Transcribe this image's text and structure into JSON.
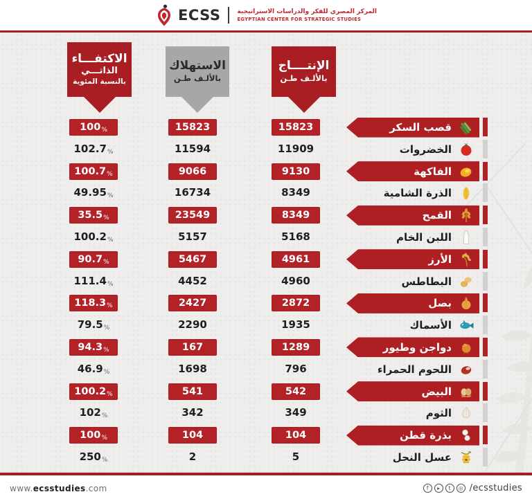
{
  "logo": {
    "short_name": "ECSS",
    "arabic_name": "المركز المصري للفكر والدراسات الاستراتيجية",
    "english_name": "EGYPTIAN CENTER FOR STRATEGIC STUDIES"
  },
  "columns": {
    "self_sufficiency": {
      "line1": "الاكتفـــاء",
      "line2": "الذاتـــي",
      "line3": "بالنسبة المئوية"
    },
    "consumption": {
      "line1": "الاستهلاك",
      "line2": "بالألـف طـن"
    },
    "production": {
      "line1": "الإنتــــاج",
      "line2": "بالألـف طـن"
    }
  },
  "ui": {
    "percent_sign": "%"
  },
  "rows": [
    {
      "label": "قصب السكر",
      "icon": "sugarcane-icon",
      "production": "15823",
      "consumption": "15823",
      "self_sufficiency": "100",
      "highlighted": true
    },
    {
      "label": "الخضروات",
      "icon": "tomato-icon",
      "production": "11909",
      "consumption": "11594",
      "self_sufficiency": "102.7",
      "highlighted": false
    },
    {
      "label": "الفاكهة",
      "icon": "mango-icon",
      "production": "9130",
      "consumption": "9066",
      "self_sufficiency": "100.7",
      "highlighted": true
    },
    {
      "label": "الذرة الشامية",
      "icon": "corn-icon",
      "production": "8349",
      "consumption": "16734",
      "self_sufficiency": "49.95",
      "highlighted": false
    },
    {
      "label": "القمح",
      "icon": "wheat-icon",
      "production": "8349",
      "consumption": "23549",
      "self_sufficiency": "35.5",
      "highlighted": true
    },
    {
      "label": "اللبن الخام",
      "icon": "milk-icon",
      "production": "5168",
      "consumption": "5157",
      "self_sufficiency": "100.2",
      "highlighted": false
    },
    {
      "label": "الأرز",
      "icon": "rice-icon",
      "production": "4961",
      "consumption": "5467",
      "self_sufficiency": "90.7",
      "highlighted": true
    },
    {
      "label": "البطاطس",
      "icon": "potato-icon",
      "production": "4960",
      "consumption": "4452",
      "self_sufficiency": "111.4",
      "highlighted": false
    },
    {
      "label": "بصل",
      "icon": "onion-icon",
      "production": "2872",
      "consumption": "2427",
      "self_sufficiency": "118.3",
      "highlighted": true
    },
    {
      "label": "الأسماك",
      "icon": "fish-icon",
      "production": "1935",
      "consumption": "2290",
      "self_sufficiency": "79.5",
      "highlighted": false
    },
    {
      "label": "دواجن وطيور",
      "icon": "chicken-icon",
      "production": "1289",
      "consumption": "167",
      "self_sufficiency": "94.3",
      "highlighted": true
    },
    {
      "label": "اللحوم الحمراء",
      "icon": "meat-icon",
      "production": "796",
      "consumption": "1698",
      "self_sufficiency": "46.9",
      "highlighted": false
    },
    {
      "label": "البيض",
      "icon": "eggs-icon",
      "production": "542",
      "consumption": "541",
      "self_sufficiency": "100.2",
      "highlighted": true
    },
    {
      "label": "الثوم",
      "icon": "garlic-icon",
      "production": "349",
      "consumption": "342",
      "self_sufficiency": "102",
      "highlighted": false
    },
    {
      "label": "بذرة قطن",
      "icon": "cotton-icon",
      "production": "104",
      "consumption": "104",
      "self_sufficiency": "100",
      "highlighted": true
    },
    {
      "label": "عسل النحل",
      "icon": "honey-icon",
      "production": "5",
      "consumption": "2",
      "self_sufficiency": "250",
      "highlighted": false
    }
  ],
  "chart_data": {
    "type": "table",
    "categories": [
      "قصب السكر",
      "الخضروات",
      "الفاكهة",
      "الذرة الشامية",
      "القمح",
      "اللبن الخام",
      "الأرز",
      "البطاطس",
      "بصل",
      "الأسماك",
      "دواجن وطيور",
      "اللحوم الحمراء",
      "البيض",
      "الثوم",
      "بذرة قطن",
      "عسل النحل"
    ],
    "series": [
      {
        "name": "الإنتاج بالألف طن",
        "values": [
          15823,
          11909,
          9130,
          8349,
          8349,
          5168,
          4961,
          4960,
          2872,
          1935,
          1289,
          796,
          542,
          349,
          104,
          5
        ]
      },
      {
        "name": "الاستهلاك بالألف طن",
        "values": [
          15823,
          11594,
          9066,
          16734,
          23549,
          5157,
          5467,
          4452,
          2427,
          2290,
          167,
          1698,
          541,
          342,
          104,
          2
        ]
      },
      {
        "name": "الاكتفاء الذاتي بالنسبة المئوية",
        "values": [
          100,
          102.7,
          100.7,
          49.95,
          35.5,
          100.2,
          90.7,
          111.4,
          118.3,
          79.5,
          94.3,
          46.9,
          100.2,
          102,
          100,
          250
        ]
      }
    ]
  },
  "footer": {
    "website_prefix": "www.",
    "website_bold": "ecsstudies",
    "website_suffix": ".com",
    "social_icons": [
      "facebook-icon",
      "youtube-icon",
      "twitter-icon",
      "instagram-icon"
    ],
    "social_handle": "/ecsstudies"
  },
  "colors": {
    "accent_red": "#ae1f24",
    "badge_red": "#b22227",
    "separator_red": "#a61e22",
    "gray_callout": "#a7a7a9",
    "background": "#efeeec",
    "text_dark": "#1e1e1c"
  }
}
